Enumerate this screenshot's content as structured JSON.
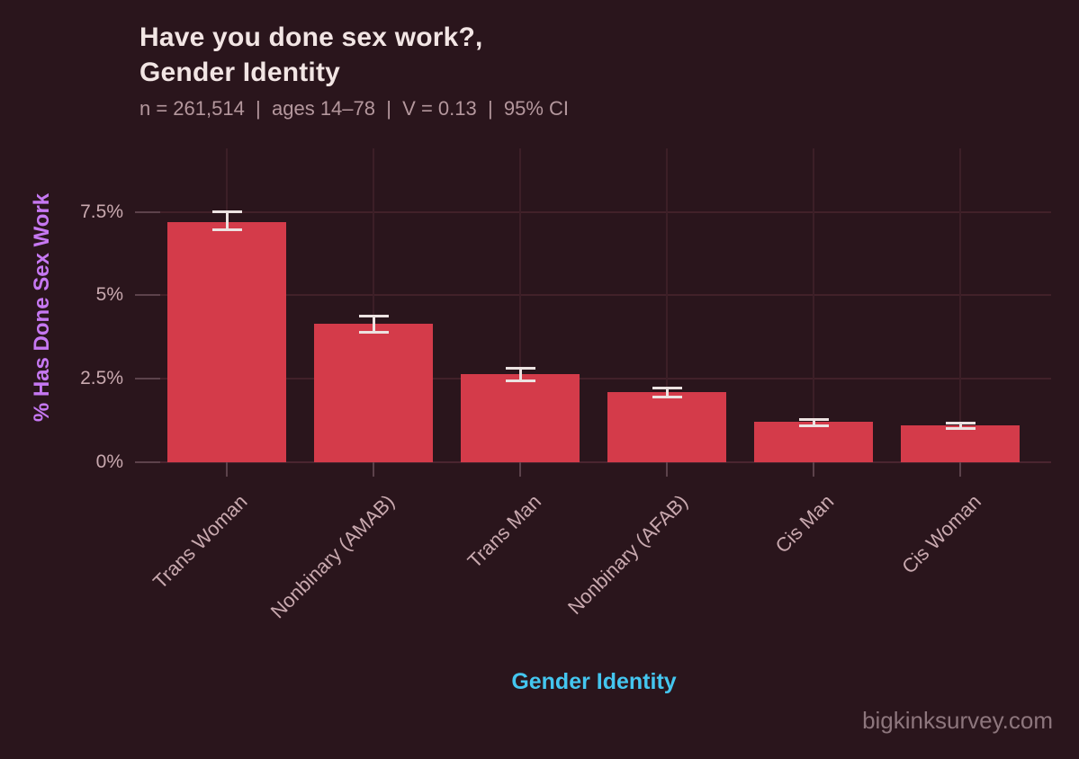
{
  "chart_data": {
    "type": "bar",
    "title_line1": "Have you done sex work?,",
    "title_line2": "Gender Identity",
    "subtitle": "n = 261,514  |  ages 14–78  |  V = 0.13  |  95% CI",
    "xlabel": "Gender Identity",
    "ylabel": "% Has Done Sex Work",
    "watermark": "bigkinksurvey.com",
    "categories": [
      "Trans Woman",
      "Nonbinary (AMAB)",
      "Trans Man",
      "Nonbinary (AFAB)",
      "Cis Man",
      "Cis Woman"
    ],
    "values": [
      7.2,
      4.15,
      2.65,
      2.1,
      1.2,
      1.1
    ],
    "ci_low": [
      6.95,
      3.9,
      2.45,
      1.96,
      1.1,
      1.02
    ],
    "ci_high": [
      7.5,
      4.39,
      2.81,
      2.21,
      1.28,
      1.18
    ],
    "yticks": [
      0,
      2.5,
      5,
      7.5
    ],
    "ytick_labels": [
      "0%",
      "2.5%",
      "5%",
      "7.5%"
    ],
    "ylim": [
      0,
      9.4
    ],
    "grid": true,
    "legend": null,
    "colors": {
      "background": "#2a151c",
      "bar": "#d43b4a",
      "error_bar": "#ece2e1",
      "title": "#f2e5e4",
      "subtitle": "#b4979d",
      "y_axis_title": "#c678f2",
      "x_axis_title": "#44c6ef",
      "tick_labels": "#c9a9af",
      "gridline": "#412129",
      "watermark": "#8d767d"
    }
  }
}
